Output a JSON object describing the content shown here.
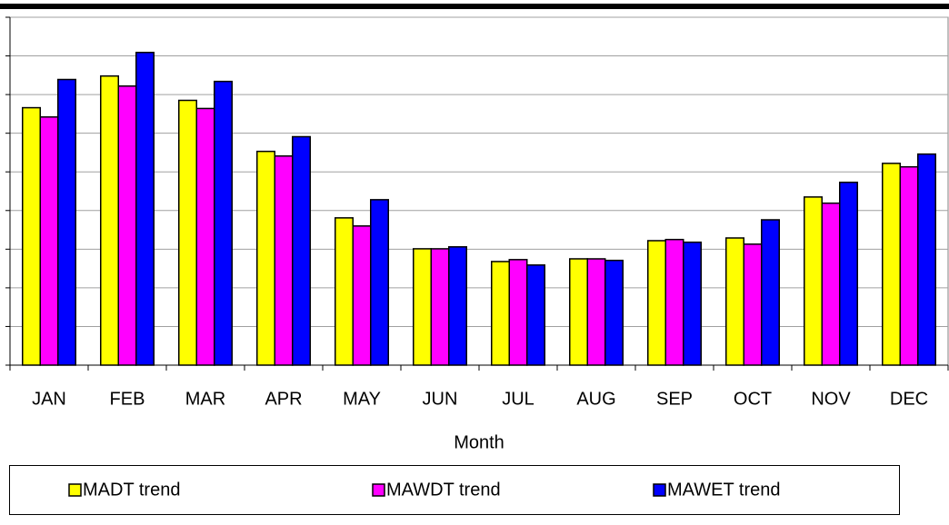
{
  "chart_data": {
    "type": "bar",
    "x_label": "Month",
    "categories": [
      "JAN",
      "FEB",
      "MAR",
      "APR",
      "MAY",
      "JUN",
      "JUL",
      "AUG",
      "SEP",
      "OCT",
      "NOV",
      "DEC"
    ],
    "series": [
      {
        "name": "MADT trend",
        "color": "#ffff00",
        "values": [
          6.66,
          7.48,
          6.85,
          5.53,
          3.81,
          3.01,
          2.68,
          2.75,
          3.22,
          3.29,
          4.35,
          5.22
        ]
      },
      {
        "name": "MAWDT trend",
        "color": "#ff00ff",
        "values": [
          6.42,
          7.22,
          6.64,
          5.41,
          3.6,
          3.01,
          2.73,
          2.75,
          3.25,
          3.13,
          4.19,
          5.13
        ]
      },
      {
        "name": "MAWET trend",
        "color": "#0000ff",
        "values": [
          7.39,
          8.09,
          7.34,
          5.91,
          4.28,
          3.06,
          2.59,
          2.71,
          3.18,
          3.76,
          4.73,
          5.46
        ]
      }
    ],
    "ylim": [
      0,
      9
    ],
    "yticks": [
      0,
      1,
      2,
      3,
      4,
      5,
      6,
      7,
      8,
      9
    ],
    "grid": true,
    "legend": "bottom"
  }
}
